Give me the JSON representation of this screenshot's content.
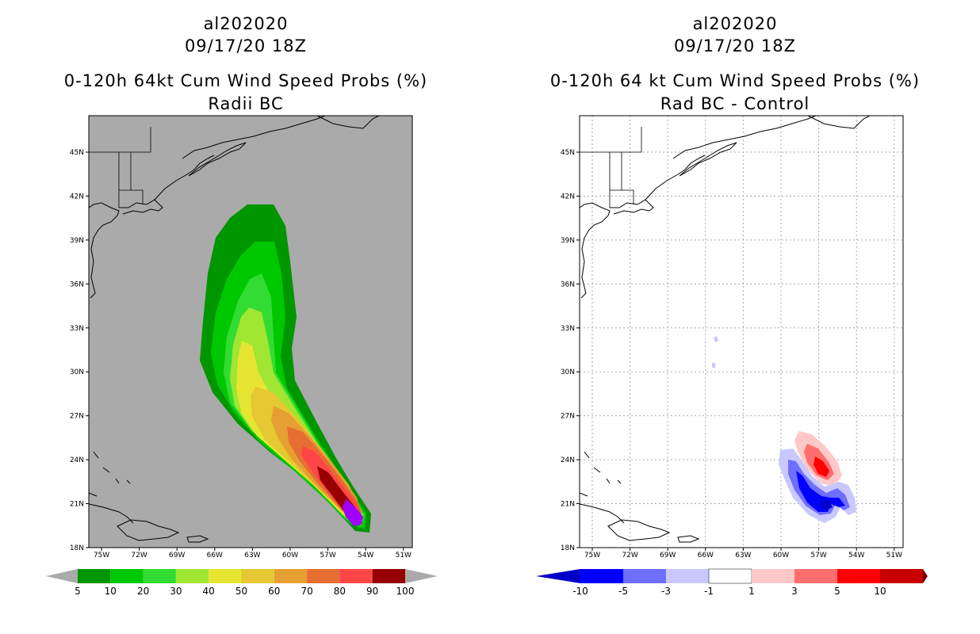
{
  "left_panel": {
    "title_lines": [
      "al202020",
      "09/17/20 18Z",
      "0-120h 64kt Cum Wind Speed Probs (%)",
      "Radii BC"
    ],
    "lat_labels": [
      "45N",
      "42N",
      "39N",
      "36N",
      "33N",
      "30N",
      "27N",
      "24N",
      "21N",
      "18N"
    ],
    "lon_labels": [
      "75W",
      "72W",
      "69W",
      "66W",
      "63W",
      "60W",
      "57W",
      "54W",
      "51W"
    ],
    "colorbar": {
      "labels": [
        "5",
        "10",
        "20",
        "30",
        "40",
        "50",
        "60",
        "70",
        "80",
        "90",
        "100"
      ],
      "colors": [
        "#009600",
        "#00c800",
        "#32dc32",
        "#a0e632",
        "#e6e632",
        "#e6c832",
        "#e6a032",
        "#e66e32",
        "#ff4646",
        "#960000",
        "#a000ff"
      ],
      "extend_color": "#aaaaaa"
    },
    "background_color": "#aaaaaa"
  },
  "right_panel": {
    "title_lines": [
      "al202020",
      "09/17/20 18Z",
      "0-120h 64 kt Cum Wind Speed Probs (%)",
      "Rad BC - Control"
    ],
    "lat_labels": [
      "45N",
      "42N",
      "39N",
      "36N",
      "33N",
      "30N",
      "27N",
      "24N",
      "21N",
      "18N"
    ],
    "lon_labels": [
      "75W",
      "72W",
      "69W",
      "66W",
      "63W",
      "60W",
      "57W",
      "54W",
      "51W"
    ],
    "colorbar": {
      "labels": [
        "-10",
        "-5",
        "-3",
        "-1",
        "1",
        "3",
        "5",
        "10"
      ],
      "colors": [
        "#0000c8",
        "#0000ff",
        "#6e6eff",
        "#c8c8ff",
        "#ffffff",
        "#ffc8c8",
        "#ff6e6e",
        "#ff0000",
        "#c80000",
        "#780000"
      ]
    },
    "background_color": "#ffffff"
  }
}
